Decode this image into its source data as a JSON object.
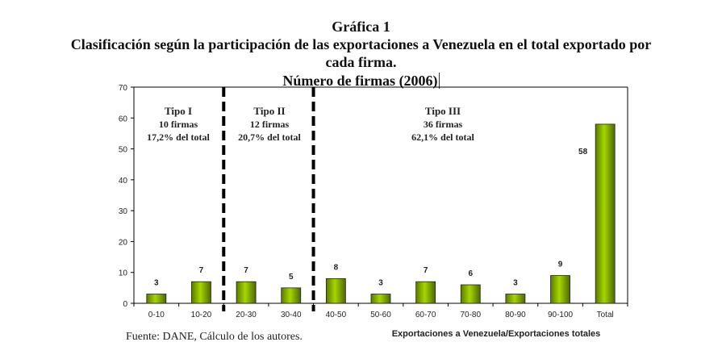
{
  "header": {
    "figure_number": "Gráfica 1",
    "title_line1": "Clasificación según la participación de las exportaciones a Venezuela en el total exportado por",
    "title_line2": "cada firma.",
    "subtitle": "Número de firmas (2006)"
  },
  "source": "Fuente: DANE, Cálculo de los autores.",
  "chart_data": {
    "type": "bar",
    "categories": [
      "0-10",
      "10-20",
      "20-30",
      "30-40",
      "40-50",
      "50-60",
      "60-70",
      "70-80",
      "80-90",
      "90-100",
      "Total"
    ],
    "values": [
      3,
      7,
      7,
      5,
      8,
      3,
      7,
      6,
      3,
      9,
      58
    ],
    "data_labels": [
      "3",
      "7",
      "7",
      "5",
      "8",
      "3",
      "7",
      "6",
      "3",
      "9",
      "58"
    ],
    "xlabel": "Exportaciones a Venezuela/Exportaciones totales",
    "ylabel": "",
    "ylim": [
      0,
      70
    ],
    "yticks": [
      0,
      10,
      20,
      30,
      40,
      50,
      60,
      70
    ],
    "grid": false,
    "bar_color": "#99cc00",
    "group_dividers_after": [
      "10-20",
      "30-40"
    ],
    "annotations": [
      {
        "lines": [
          "Tipo I",
          "10 firmas",
          "17,2% del total"
        ]
      },
      {
        "lines": [
          "Tipo II",
          "12 firmas",
          "20,7% del total"
        ]
      },
      {
        "lines": [
          "Tipo III",
          "36 firmas",
          "62,1% del total"
        ]
      }
    ]
  }
}
